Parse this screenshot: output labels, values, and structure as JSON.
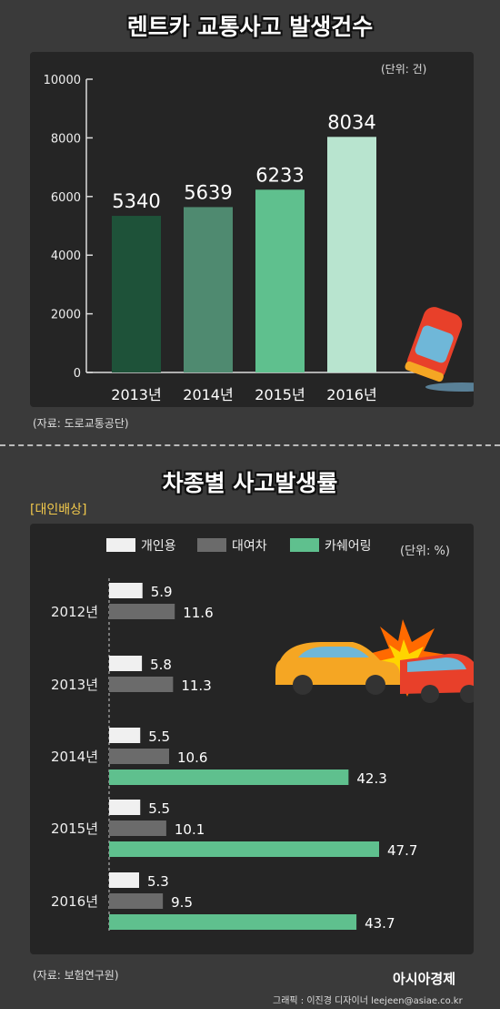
{
  "chart1": {
    "title": "렌트카 교통사고 발생건수",
    "unit": "(단위: 건)",
    "source": "(자료: 도로교통공단)"
  },
  "chart2": {
    "title": "차종별 사고발생률",
    "subtitle": "[대인배상]",
    "unit": "(단위: %)",
    "source": "(자료: 보험연구원)"
  },
  "footer": {
    "logo": "아시아경제",
    "credit": "그래픽 : 이진경 디자이너 leejeen@asiae.co.kr"
  },
  "chart_data": [
    {
      "type": "bar",
      "title": "렌트카 교통사고 발생건수",
      "categories": [
        "2013년",
        "2014년",
        "2015년",
        "2016년"
      ],
      "values": [
        5340,
        5639,
        6233,
        8034
      ],
      "value_labels": [
        "5340",
        "5639",
        "6233",
        "8034"
      ],
      "colors": [
        "#1e5239",
        "#4f8a70",
        "#5fc08e",
        "#b8e4cf"
      ],
      "ylim": [
        0,
        10000
      ],
      "yticks": [
        0,
        2000,
        4000,
        6000,
        8000,
        10000
      ],
      "grid": false
    },
    {
      "type": "bar",
      "orientation": "horizontal",
      "title": "차종별 사고발생률",
      "categories": [
        "2012년",
        "2013년",
        "2014년",
        "2015년",
        "2016년"
      ],
      "series": [
        {
          "name": "개인용",
          "color": "#f0f0f0",
          "values": [
            5.9,
            5.8,
            5.5,
            5.5,
            5.3
          ],
          "labels": [
            "5.9",
            "5.8",
            "5.5",
            "5.5",
            "5.3"
          ]
        },
        {
          "name": "대여차",
          "color": "#6b6b6b",
          "values": [
            11.6,
            11.3,
            10.6,
            10.1,
            9.5
          ],
          "labels": [
            "11.6",
            "11.3",
            "10.6",
            "10.1",
            "9.5"
          ]
        },
        {
          "name": "카쉐어링",
          "color": "#5fc08e",
          "values": [
            null,
            null,
            42.3,
            47.7,
            43.7
          ],
          "labels": [
            "",
            "",
            "42.3",
            "47.7",
            "43.7"
          ]
        }
      ],
      "legend": "top",
      "grid": false
    }
  ]
}
